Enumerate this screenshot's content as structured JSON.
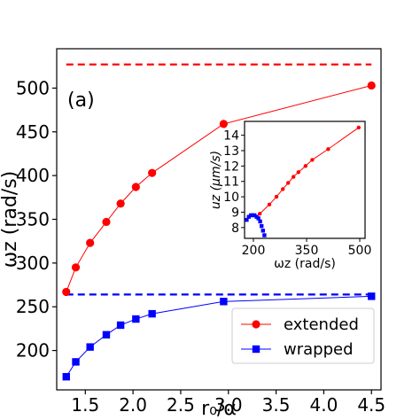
{
  "chart_data": [
    {
      "type": "line",
      "panel_label": "(a)",
      "xlabel": "r₀/α",
      "ylabel": "ωz (rad/s)",
      "xlim": [
        1.2,
        4.6
      ],
      "ylim": [
        155,
        545
      ],
      "x_ticks": [
        1.5,
        2.0,
        2.5,
        3.0,
        3.5,
        4.0,
        4.5
      ],
      "x_tick_labels": [
        "1.5",
        "2.0",
        "2.5",
        "3.0",
        "3.5",
        "4.0",
        "4.5"
      ],
      "y_ticks": [
        200,
        250,
        300,
        350,
        400,
        450,
        500
      ],
      "y_tick_labels": [
        "200",
        "250",
        "300",
        "350",
        "400",
        "450",
        "500"
      ],
      "grid": false,
      "legend_position": "lower-right",
      "series": [
        {
          "name": "extended",
          "color": "#ff0000",
          "marker": "circle",
          "x": [
            1.3,
            1.4,
            1.55,
            1.72,
            1.87,
            2.03,
            2.2,
            2.95,
            4.5
          ],
          "y": [
            267,
            295,
            323,
            347,
            368,
            387,
            403,
            459,
            503
          ]
        },
        {
          "name": "wrapped",
          "color": "#0000ff",
          "marker": "square",
          "x": [
            1.3,
            1.4,
            1.55,
            1.72,
            1.87,
            2.03,
            2.2,
            2.95,
            4.5
          ],
          "y": [
            170,
            187,
            204,
            218,
            229,
            236,
            242,
            256,
            262
          ]
        }
      ],
      "reference_lines": [
        {
          "color": "#ff0000",
          "style": "dashed",
          "y": 527,
          "x_range": [
            1.3,
            4.5
          ]
        },
        {
          "color": "#0000ff",
          "style": "dashed",
          "y": 264,
          "x_range": [
            1.3,
            4.5
          ]
        }
      ]
    },
    {
      "type": "scatter",
      "role": "inset",
      "xlabel": "ωz (rad/s)",
      "ylabel": "uz (μm/s)",
      "xlim": [
        175,
        515
      ],
      "ylim": [
        7.3,
        14.9
      ],
      "x_ticks": [
        200,
        350,
        500
      ],
      "x_tick_labels": [
        "200",
        "350",
        "500"
      ],
      "y_ticks": [
        8,
        9,
        10,
        11,
        12,
        13,
        14
      ],
      "y_tick_labels": [
        "8",
        "9",
        "10",
        "11",
        "12",
        "13",
        "14"
      ],
      "series": [
        {
          "name": "extended",
          "color": "#ff0000",
          "x": [
            218,
            245,
            265,
            283,
            298,
            313,
            327,
            347,
            366,
            411,
            497
          ],
          "y": [
            8.9,
            9.5,
            10.0,
            10.5,
            10.9,
            11.3,
            11.6,
            12.0,
            12.4,
            13.1,
            14.5
          ]
        },
        {
          "name": "wrapped",
          "color": "#0000ff",
          "x": [
            181,
            187,
            193,
            197,
            203,
            209,
            214,
            219,
            223,
            227,
            231
          ],
          "y": [
            8.5,
            8.7,
            8.8,
            8.8,
            8.8,
            8.7,
            8.6,
            8.4,
            8.1,
            7.8,
            7.5
          ]
        }
      ]
    }
  ]
}
